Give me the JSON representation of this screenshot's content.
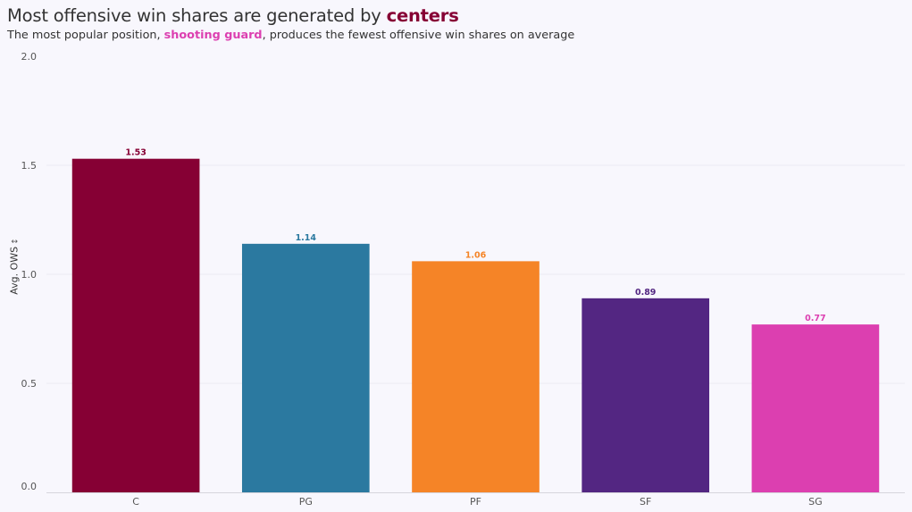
{
  "header": {
    "title_prefix": "Most offensive win shares are generated by ",
    "title_highlight": "centers",
    "subtitle_prefix": "The most popular position, ",
    "subtitle_highlight": "shooting guard",
    "subtitle_suffix": ", produces the fewest offensive win shares on average"
  },
  "colors": {
    "background": "#f8f7fd",
    "highlight_centers": "#860034",
    "highlight_shooting_guard": "#dc3fb0"
  },
  "chart_data": {
    "type": "bar",
    "categories": [
      "C",
      "PG",
      "PF",
      "SF",
      "SG"
    ],
    "values": [
      1.53,
      1.14,
      1.06,
      0.89,
      0.77
    ],
    "value_labels": [
      "1.53",
      "1.14",
      "1.06",
      "0.89",
      "0.77"
    ],
    "colors": [
      "#860034",
      "#2b79a0",
      "#f58427",
      "#532682",
      "#dc3fb0"
    ],
    "title": "Most offensive win shares are generated by centers",
    "ylabel": "Avg. OWS",
    "ylabel_icon": "sort-icon",
    "xlabel": "",
    "ylim": [
      0,
      2.0
    ],
    "yticks": [
      "0.0",
      "0.5",
      "1.0",
      "1.5",
      "2.0"
    ],
    "ytick_values": [
      0,
      0.5,
      1.0,
      1.5,
      2.0
    ],
    "grid": true,
    "legend": "none"
  }
}
